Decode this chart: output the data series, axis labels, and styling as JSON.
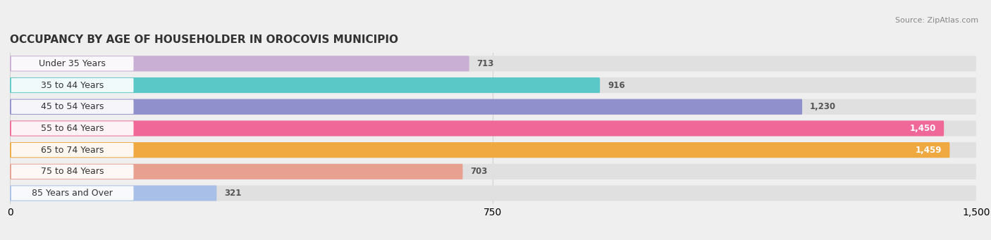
{
  "title": "OCCUPANCY BY AGE OF HOUSEHOLDER IN OROCOVIS MUNICIPIO",
  "source": "Source: ZipAtlas.com",
  "categories": [
    "Under 35 Years",
    "35 to 44 Years",
    "45 to 54 Years",
    "55 to 64 Years",
    "65 to 74 Years",
    "75 to 84 Years",
    "85 Years and Over"
  ],
  "values": [
    713,
    916,
    1230,
    1450,
    1459,
    703,
    321
  ],
  "bar_colors": [
    "#c9afd4",
    "#5bc8c8",
    "#9090cc",
    "#f06898",
    "#f0a840",
    "#e8a090",
    "#a8c0e8"
  ],
  "xlim_max": 1500,
  "xticks": [
    0,
    750,
    1500
  ],
  "background_color": "#efefef",
  "bar_bg_color": "#e0e0e0",
  "title_fontsize": 11,
  "source_fontsize": 8,
  "label_fontsize": 9,
  "value_fontsize": 8.5,
  "bar_height": 0.72,
  "n_bars": 7
}
